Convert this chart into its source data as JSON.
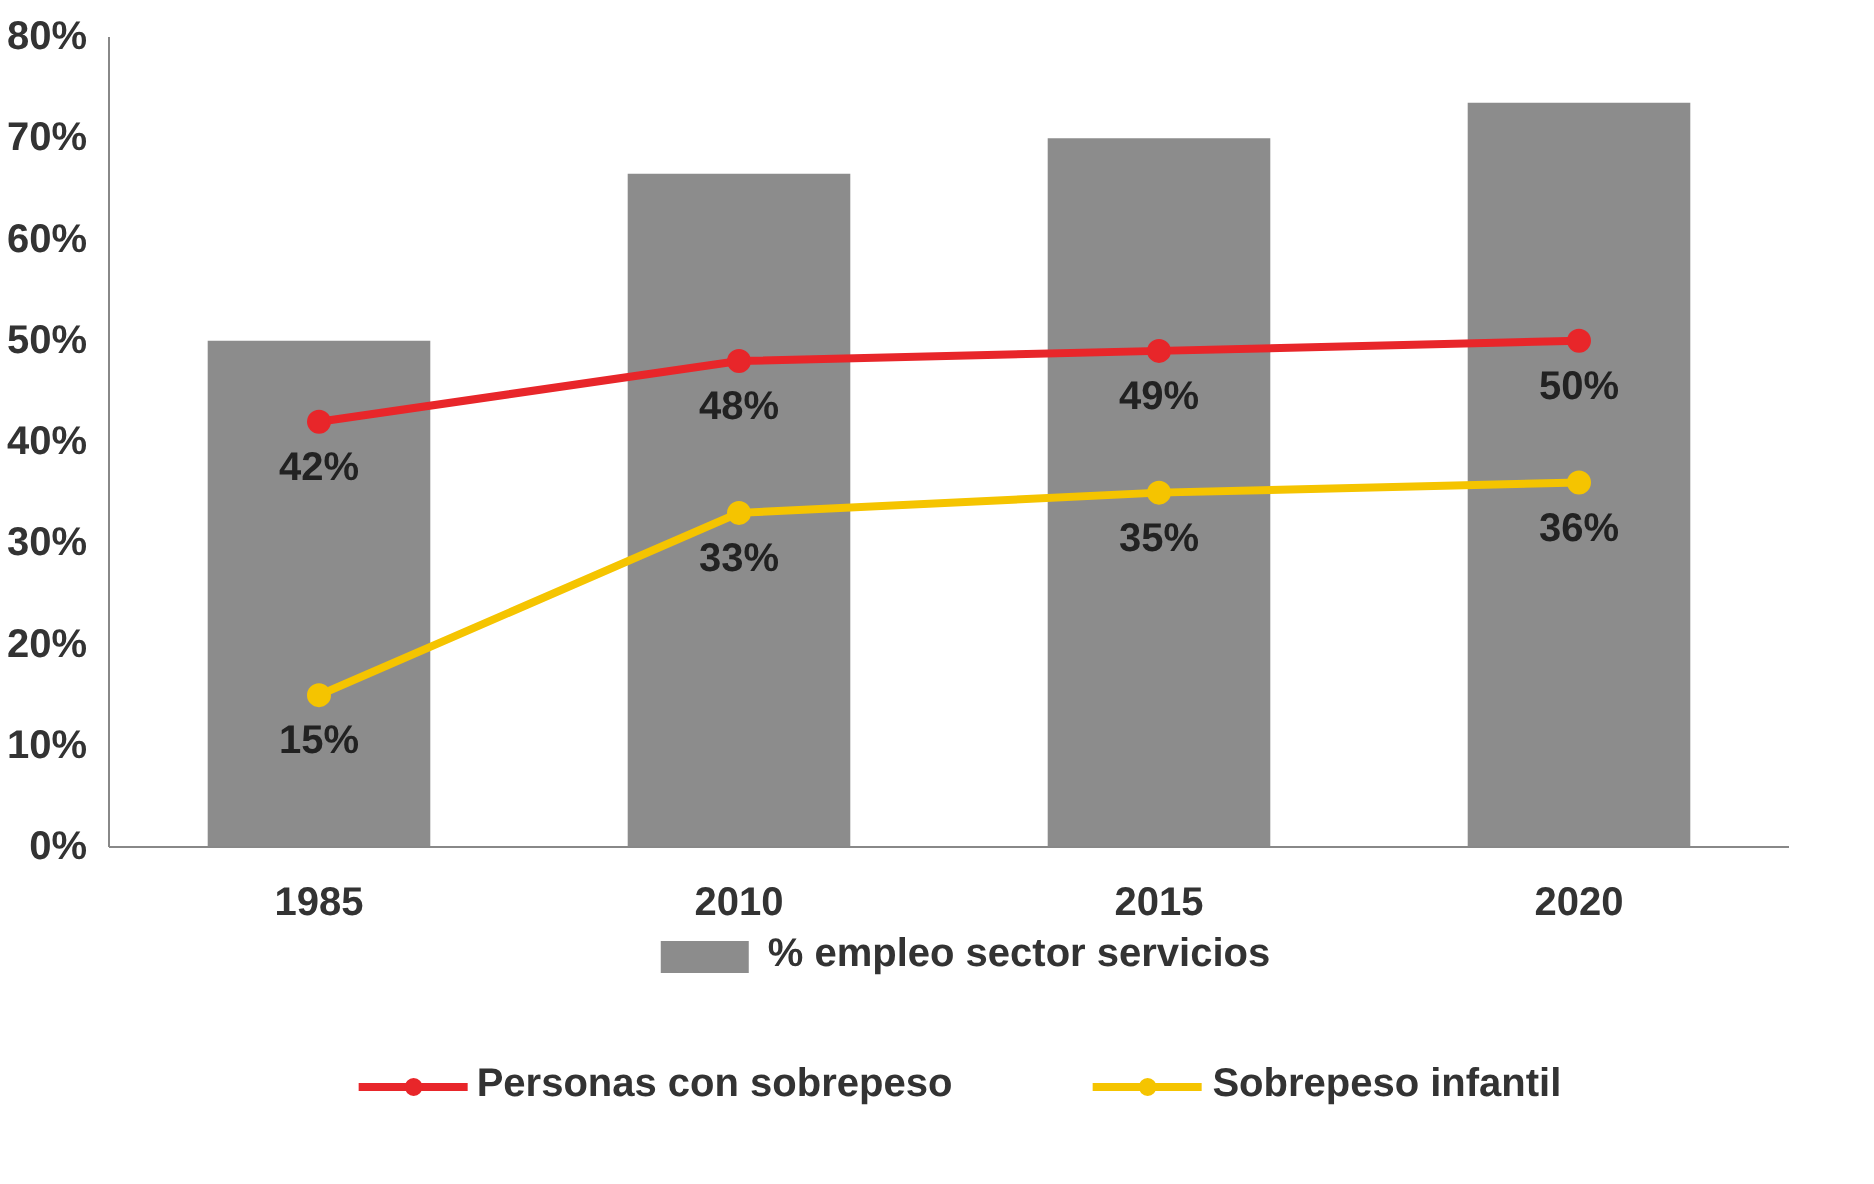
{
  "chart_data": {
    "type": "bar",
    "categories": [
      "1985",
      "2010",
      "2015",
      "2020"
    ],
    "series": [
      {
        "name": "% empleo sector servicios",
        "color": "#8c8c8c",
        "values": [
          50,
          66.5,
          70,
          73.5
        ]
      },
      {
        "name": "Personas con sobrepeso",
        "type": "line",
        "color": "#e8262a",
        "values": [
          42,
          48,
          49,
          50
        ],
        "value_labels": [
          "42%",
          "48%",
          "49%",
          "50%"
        ]
      },
      {
        "name": "Sobrepeso infantil",
        "type": "line",
        "color": "#f5c400",
        "values": [
          15,
          33,
          35,
          36
        ],
        "value_labels": [
          "15%",
          "33%",
          "35%",
          "36%"
        ]
      }
    ],
    "ylim": [
      0,
      80
    ],
    "yticks": [
      {
        "value": 0,
        "label": "0%"
      },
      {
        "value": 10,
        "label": "10%"
      },
      {
        "value": 20,
        "label": "20%"
      },
      {
        "value": 30,
        "label": "30%"
      },
      {
        "value": 40,
        "label": "40%"
      },
      {
        "value": 50,
        "label": "50%"
      },
      {
        "value": 60,
        "label": "60%"
      },
      {
        "value": 70,
        "label": "70%"
      },
      {
        "value": 80,
        "label": "80%"
      }
    ],
    "grid": false,
    "legend": "bottom",
    "marker": "circle",
    "line_style": "solid"
  }
}
